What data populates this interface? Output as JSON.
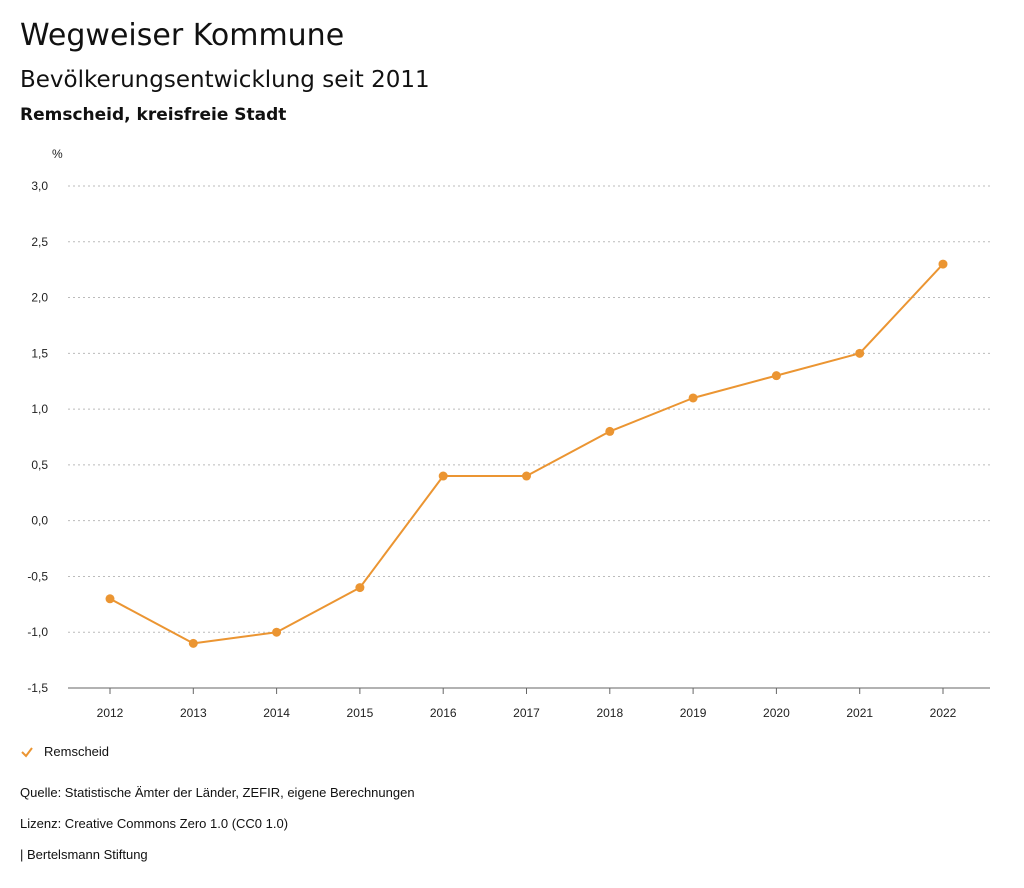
{
  "header": {
    "title": "Wegweiser Kommune",
    "subtitle": "Bevölkerungsentwicklung seit 2011",
    "region": "Remscheid, kreisfreie Stadt"
  },
  "chart_data": {
    "type": "line",
    "ylabel": "%",
    "ylim": [
      -1.5,
      3.0
    ],
    "y_ticks": [
      3.0,
      2.5,
      2.0,
      1.5,
      1.0,
      0.5,
      0.0,
      -0.5,
      -1.0,
      -1.5
    ],
    "y_tick_labels": [
      "3,0",
      "2,5",
      "2,0",
      "1,5",
      "1,0",
      "0,5",
      "0,0",
      "-0,5",
      "-1,0",
      "-1,5"
    ],
    "categories": [
      "2012",
      "2013",
      "2014",
      "2015",
      "2016",
      "2017",
      "2018",
      "2019",
      "2020",
      "2021",
      "2022"
    ],
    "series": [
      {
        "name": "Remscheid",
        "color": "#eb9532",
        "values": [
          -0.7,
          -1.1,
          -1.0,
          -0.6,
          0.4,
          0.4,
          0.8,
          1.1,
          1.3,
          1.5,
          2.3
        ]
      }
    ],
    "grid": true,
    "legend_position": "bottom-left"
  },
  "legend": {
    "label": "Remscheid",
    "icon": "check-icon"
  },
  "footer": {
    "source": "Quelle: Statistische Ämter der Länder, ZEFIR, eigene Berechnungen",
    "license": "Lizenz: Creative Commons Zero 1.0 (CC0 1.0)",
    "publisher": "| Bertelsmann Stiftung"
  }
}
